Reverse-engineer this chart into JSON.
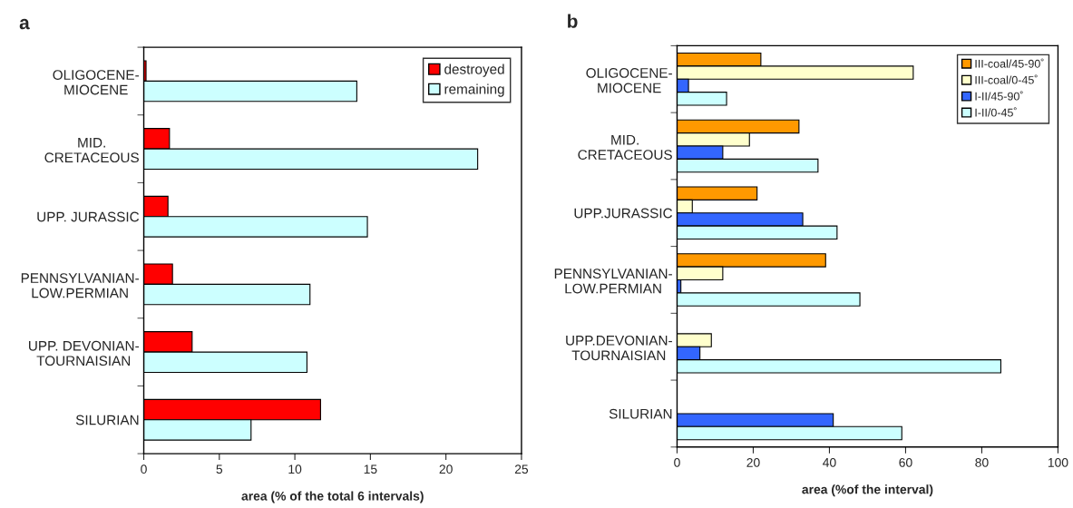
{
  "chart_data": [
    {
      "type": "bar",
      "orientation": "horizontal",
      "title": "a",
      "xlabel": "area (% of the total 6 intervals)",
      "categories": [
        "OLIGOCENE-\nMIOCENE",
        "MID.\nCRETACEOUS",
        "UPP. JURASSIC",
        "PENNSYLVANIAN-\nLOW.PERMIAN",
        "UPP. DEVONIAN-\nTOURNAISIAN",
        "SILURIAN"
      ],
      "series": [
        {
          "name": "destroyed",
          "color": "#ff0000",
          "values": [
            0.15,
            1.7,
            1.6,
            1.9,
            3.2,
            11.7
          ]
        },
        {
          "name": "remaining",
          "color": "#ccffff",
          "values": [
            14.1,
            22.1,
            14.8,
            11.0,
            10.8,
            7.1
          ]
        }
      ],
      "xlim": [
        0,
        25
      ],
      "xticks": [
        0,
        5,
        10,
        15,
        20,
        25
      ],
      "grid": false,
      "legend": "top right"
    },
    {
      "type": "bar",
      "orientation": "horizontal",
      "title": "b",
      "xlabel": "area (%of the interval)",
      "categories": [
        "OLIGOCENE-\nMIOCENE",
        "MID.\nCRETACEOUS",
        "UPP.JURASSIC",
        "PENNSYLVANIAN-\nLOW.PERMIAN",
        "UPP.DEVONIAN-\nTOURNAISIAN",
        "SILURIAN"
      ],
      "series": [
        {
          "name": "III-coal/45-90˚",
          "color": "#ff9900",
          "values": [
            22,
            32,
            21,
            39,
            null,
            null
          ]
        },
        {
          "name": "III-coal/0-45˚",
          "color": "#ffffcc",
          "values": [
            62,
            19,
            4,
            12,
            9,
            null
          ]
        },
        {
          "name": "I-II/45-90˚",
          "color": "#3366ff",
          "values": [
            3,
            12,
            33,
            1,
            6,
            41
          ]
        },
        {
          "name": "I-II/0-45˚",
          "color": "#ccffff",
          "values": [
            13,
            37,
            42,
            48,
            85,
            59
          ]
        }
      ],
      "xlim": [
        0,
        100
      ],
      "xticks": [
        0,
        20,
        40,
        60,
        80,
        100
      ],
      "grid": false,
      "legend": "top right"
    }
  ]
}
